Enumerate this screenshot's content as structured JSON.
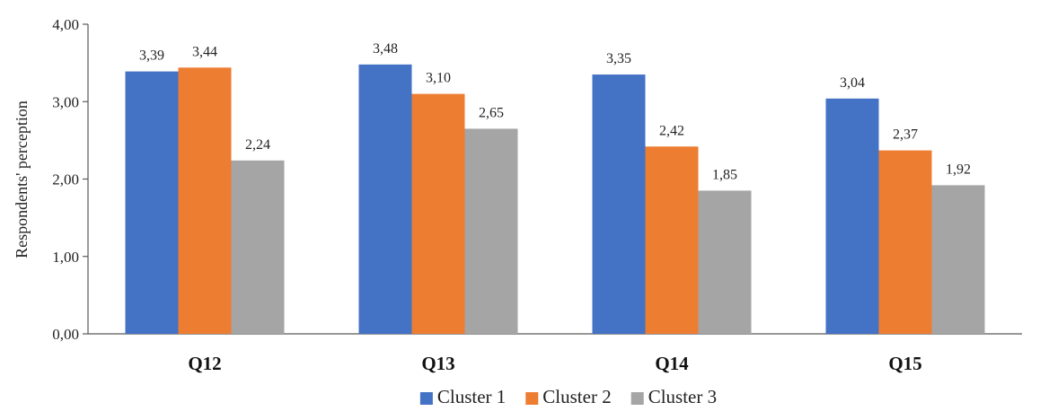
{
  "chart_data": {
    "type": "bar",
    "categories": [
      "Q12",
      "Q13",
      "Q14",
      "Q15"
    ],
    "series": [
      {
        "name": "Cluster 1",
        "color": "#4472C4",
        "values": [
          3.39,
          3.48,
          3.35,
          3.04
        ],
        "labels": [
          "3,39",
          "3,48",
          "3,35",
          "3,04"
        ]
      },
      {
        "name": "Cluster 2",
        "color": "#ED7D31",
        "values": [
          3.44,
          3.1,
          2.42,
          2.37
        ],
        "labels": [
          "3,44",
          "3,10",
          "2,42",
          "2,37"
        ]
      },
      {
        "name": "Cluster 3",
        "color": "#A5A5A5",
        "values": [
          2.24,
          2.65,
          1.85,
          1.92
        ],
        "labels": [
          "2,24",
          "2,65",
          "1,85",
          "1,92"
        ]
      }
    ],
    "title": "",
    "xlabel": "",
    "ylabel": "Respondents' perception",
    "ylim": [
      0,
      4
    ],
    "yticks": [
      0,
      1,
      2,
      3,
      4
    ],
    "ytick_labels": [
      "0,00",
      "1,00",
      "2,00",
      "3,00",
      "4,00"
    ],
    "grid": false,
    "legend_position": "bottom"
  }
}
